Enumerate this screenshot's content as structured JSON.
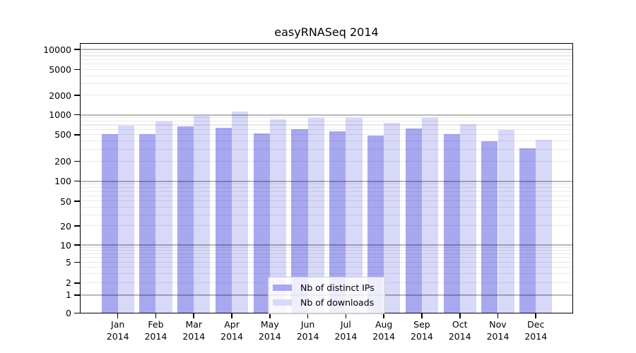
{
  "chart_data": {
    "type": "bar",
    "title": "easyRNASeq 2014",
    "categories": [
      [
        "Jan",
        "2014"
      ],
      [
        "Feb",
        "2014"
      ],
      [
        "Mar",
        "2014"
      ],
      [
        "Apr",
        "2014"
      ],
      [
        "May",
        "2014"
      ],
      [
        "Jun",
        "2014"
      ],
      [
        "Jul",
        "2014"
      ],
      [
        "Aug",
        "2014"
      ],
      [
        "Sep",
        "2014"
      ],
      [
        "Oct",
        "2014"
      ],
      [
        "Nov",
        "2014"
      ],
      [
        "Dec",
        "2014"
      ]
    ],
    "series": [
      {
        "name": "Nb of distinct IPs",
        "color": "#a8a8f0",
        "values": [
          510,
          510,
          670,
          630,
          520,
          600,
          560,
          490,
          620,
          510,
          400,
          310
        ]
      },
      {
        "name": "Nb of downloads",
        "color": "#d8d8f8",
        "values": [
          690,
          790,
          960,
          1130,
          860,
          910,
          890,
          760,
          900,
          720,
          590,
          420
        ]
      }
    ],
    "y_axis": {
      "scale": "pseudo-log",
      "ticks": [
        0,
        1,
        2,
        5,
        10,
        20,
        50,
        100,
        200,
        500,
        1000,
        2000,
        5000,
        10000
      ],
      "tick_labels": [
        "0",
        "1",
        "2",
        "5",
        "10",
        "20",
        "50",
        "100",
        "200",
        "500",
        "1000",
        "2000",
        "5000",
        "10000"
      ],
      "range": [
        0,
        10000
      ]
    },
    "grid": {
      "major": true,
      "minor": true
    },
    "legend": {
      "position": "lower center",
      "frame": true
    },
    "colors": {
      "distinct_ips": "#a8a8f0",
      "downloads": "#d8d8f8",
      "major_grid": "#b8b8b8",
      "minor_grid": "#e9e9e9"
    }
  }
}
